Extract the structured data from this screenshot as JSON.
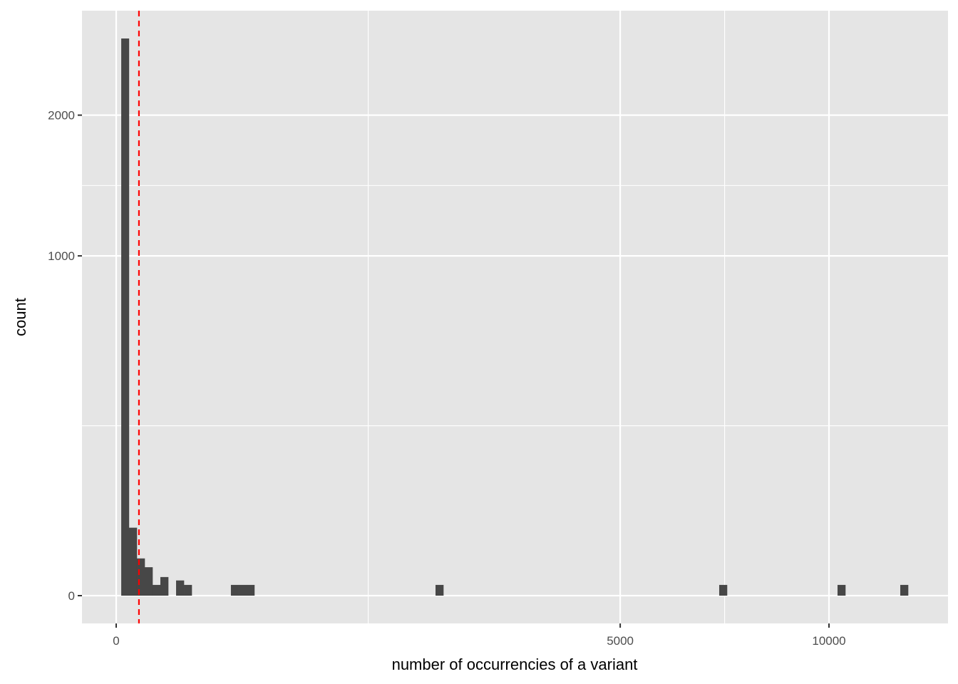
{
  "chart_data": {
    "type": "bar",
    "subtype": "histogram",
    "xlabel": "number of occurrencies of a variant",
    "ylabel": "count",
    "x_scale": "sqrt",
    "y_scale": "sqrt",
    "xlim": [
      0,
      12600
    ],
    "ylim": [
      0,
      2820
    ],
    "x_ticks": [
      0,
      5000,
      10000
    ],
    "x_tick_labels": [
      "0",
      "5000",
      "10000"
    ],
    "y_ticks": [
      0,
      1000,
      2000
    ],
    "y_tick_labels": [
      "0",
      "1000",
      "2000"
    ],
    "grid": true,
    "bins": [
      {
        "xmin": 0.5,
        "xmax": 3.2,
        "count": 2689
      },
      {
        "xmin": 3.2,
        "xmax": 8.4,
        "count": 40
      },
      {
        "xmin": 8.4,
        "xmax": 16,
        "count": 12
      },
      {
        "xmin": 16,
        "xmax": 26,
        "count": 7
      },
      {
        "xmin": 26,
        "xmax": 38.4,
        "count": 1
      },
      {
        "xmin": 38.4,
        "xmax": 53.3,
        "count": 3
      },
      {
        "xmin": 70.6,
        "xmax": 90.3,
        "count": 2
      },
      {
        "xmin": 90.3,
        "xmax": 112.4,
        "count": 1
      },
      {
        "xmin": 259,
        "xmax": 296,
        "count": 1
      },
      {
        "xmin": 296,
        "xmax": 335,
        "count": 1
      },
      {
        "xmin": 335,
        "xmax": 376,
        "count": 1
      },
      {
        "xmin": 2007,
        "xmax": 2107,
        "count": 1
      },
      {
        "xmin": 7157,
        "xmax": 7344,
        "count": 1
      },
      {
        "xmin": 10241,
        "xmax": 10465,
        "count": 1
      },
      {
        "xmin": 12100,
        "xmax": 12343,
        "count": 1
      }
    ],
    "vline": {
      "x": 10.2,
      "color": "#ff0000",
      "style": "dashed"
    },
    "colors": {
      "bar": "#474747",
      "panel": "#e5e5e5",
      "grid": "#ffffff"
    }
  }
}
